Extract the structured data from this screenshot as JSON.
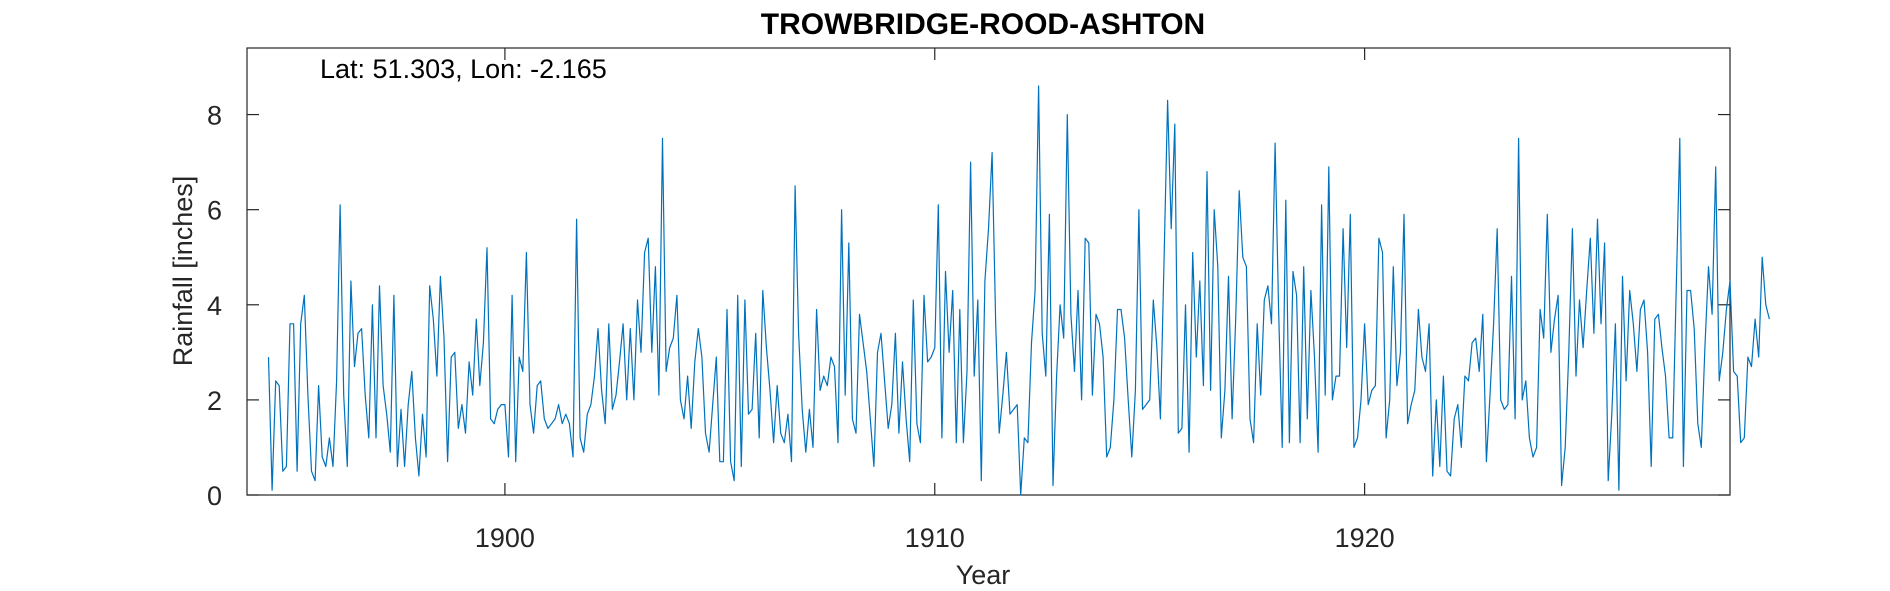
{
  "chart_data": {
    "type": "line",
    "title": "TROWBRIDGE-ROOD-ASHTON",
    "annotation": "Lat: 51.303, Lon: -2.165",
    "xlabel": "Year",
    "ylabel": "Rainfall [inches]",
    "xlim": [
      1894.0,
      1928.5
    ],
    "ylim": [
      0,
      9.4
    ],
    "xticks": [
      1900,
      1910,
      1920
    ],
    "xtick_labels": [
      "1900",
      "1910",
      "1920"
    ],
    "yticks": [
      0,
      2,
      4,
      6,
      8
    ],
    "ytick_labels": [
      "0",
      "2",
      "4",
      "6",
      "8"
    ],
    "grid": false,
    "line_color": "#0072BD",
    "x_start": 1894.5,
    "x_step": 0.083333,
    "series": [
      {
        "values": [
          2.9,
          0.1,
          2.4,
          2.3,
          0.5,
          0.6,
          3.6,
          3.6,
          0.5,
          3.6,
          4.2,
          2.1,
          0.5,
          0.3,
          2.3,
          0.8,
          0.6,
          1.2,
          0.6,
          2.4,
          6.1,
          2.1,
          0.6,
          4.5,
          2.7,
          3.4,
          3.5,
          2.1,
          1.2,
          4.0,
          1.2,
          4.4,
          2.3,
          1.7,
          0.9,
          4.2,
          0.6,
          1.8,
          0.6,
          1.9,
          2.6,
          1.2,
          0.4,
          1.7,
          0.8,
          4.4,
          3.7,
          2.5,
          4.6,
          3.3,
          0.7,
          2.9,
          3.0,
          1.4,
          1.9,
          1.3,
          2.8,
          2.1,
          3.7,
          2.3,
          3.2,
          5.2,
          1.6,
          1.5,
          1.8,
          1.9,
          1.9,
          0.8,
          4.2,
          0.7,
          2.9,
          2.6,
          5.1,
          1.9,
          1.3,
          2.3,
          2.4,
          1.6,
          1.4,
          1.5,
          1.6,
          1.9,
          1.5,
          1.7,
          1.5,
          0.8,
          5.8,
          1.2,
          0.9,
          1.7,
          1.9,
          2.5,
          3.5,
          2.2,
          1.5,
          3.6,
          1.8,
          2.1,
          2.8,
          3.6,
          2.0,
          3.5,
          2.0,
          4.1,
          3.0,
          5.1,
          5.4,
          3.0,
          4.8,
          2.1,
          7.5,
          2.6,
          3.1,
          3.3,
          4.2,
          2.0,
          1.6,
          2.5,
          1.4,
          2.8,
          3.5,
          2.9,
          1.3,
          0.9,
          1.9,
          2.9,
          0.7,
          0.7,
          3.9,
          0.7,
          0.3,
          4.2,
          0.6,
          4.1,
          1.7,
          1.8,
          3.4,
          1.2,
          4.3,
          3.1,
          2.2,
          1.1,
          2.3,
          1.3,
          1.1,
          1.7,
          0.7,
          6.5,
          3.4,
          1.8,
          0.9,
          1.8,
          1.0,
          3.9,
          2.2,
          2.5,
          2.3,
          2.9,
          2.7,
          1.1,
          6.0,
          2.1,
          5.3,
          1.6,
          1.3,
          3.8,
          3.2,
          2.6,
          1.6,
          0.6,
          3.0,
          3.4,
          2.4,
          1.4,
          1.9,
          3.4,
          1.3,
          2.8,
          1.6,
          0.7,
          4.1,
          1.5,
          1.1,
          4.2,
          2.8,
          2.9,
          3.1,
          6.1,
          1.2,
          4.7,
          3.0,
          4.3,
          1.1,
          3.9,
          1.1,
          2.6,
          7.0,
          2.5,
          4.1,
          0.3,
          4.5,
          5.6,
          7.2,
          3.6,
          1.3,
          2.1,
          3.0,
          1.7,
          1.8,
          1.9,
          0.0,
          1.2,
          1.1,
          3.2,
          4.3,
          8.6,
          3.4,
          2.5,
          5.9,
          0.2,
          2.5,
          4.0,
          3.3,
          8.0,
          3.8,
          2.6,
          4.3,
          2.0,
          5.4,
          5.3,
          2.1,
          3.8,
          3.6,
          2.9,
          0.8,
          1.0,
          2.0,
          3.9,
          3.9,
          3.3,
          2.0,
          0.8,
          2.2,
          6.0,
          1.8,
          1.9,
          2.0,
          4.1,
          3.1,
          1.6,
          4.9,
          8.3,
          5.6,
          7.8,
          1.3,
          1.4,
          4.0,
          0.9,
          5.1,
          2.9,
          4.5,
          2.3,
          6.8,
          2.2,
          6.0,
          4.8,
          1.2,
          2.2,
          4.6,
          1.6,
          3.7,
          6.4,
          5.0,
          4.8,
          1.6,
          1.1,
          3.6,
          2.1,
          4.1,
          4.4,
          3.6,
          7.4,
          3.9,
          1.0,
          6.2,
          1.1,
          4.7,
          4.2,
          1.1,
          4.8,
          1.6,
          4.3,
          2.9,
          0.9,
          6.1,
          2.1,
          6.9,
          2.0,
          2.5,
          2.5,
          5.6,
          3.1,
          5.9,
          1.0,
          1.2,
          2.0,
          3.6,
          1.9,
          2.2,
          2.3,
          5.4,
          5.1,
          1.2,
          2.0,
          4.8,
          2.3,
          3.0,
          5.9,
          1.5,
          1.9,
          2.2,
          3.9,
          2.9,
          2.6,
          3.6,
          0.4,
          2.0,
          0.6,
          2.5,
          0.5,
          0.4,
          1.6,
          1.9,
          1.0,
          2.5,
          2.4,
          3.2,
          3.3,
          2.6,
          3.8,
          0.7,
          2.1,
          3.6,
          5.6,
          2.0,
          1.8,
          1.9,
          4.6,
          1.6,
          7.5,
          2.0,
          2.4,
          1.2,
          0.8,
          1.0,
          3.9,
          3.3,
          5.9,
          3.0,
          3.7,
          4.2,
          0.2,
          1.0,
          3.0,
          5.6,
          2.5,
          4.1,
          3.1,
          4.3,
          5.4,
          3.4,
          5.8,
          3.6,
          5.3,
          0.3,
          1.7,
          3.6,
          0.1,
          4.6,
          2.4,
          4.3,
          3.6,
          2.6,
          3.9,
          4.1,
          3.0,
          0.6,
          3.7,
          3.8,
          3.1,
          2.5,
          1.2,
          1.2,
          4.4,
          7.5,
          0.6,
          4.3,
          4.3,
          3.5,
          1.5,
          1.0,
          3.1,
          4.8,
          3.8,
          6.9,
          2.4,
          3.0,
          3.9,
          4.5,
          2.6,
          2.5,
          1.1,
          1.2,
          2.9,
          2.7,
          3.7,
          2.9,
          5.0,
          4.0,
          3.7
        ]
      }
    ]
  }
}
